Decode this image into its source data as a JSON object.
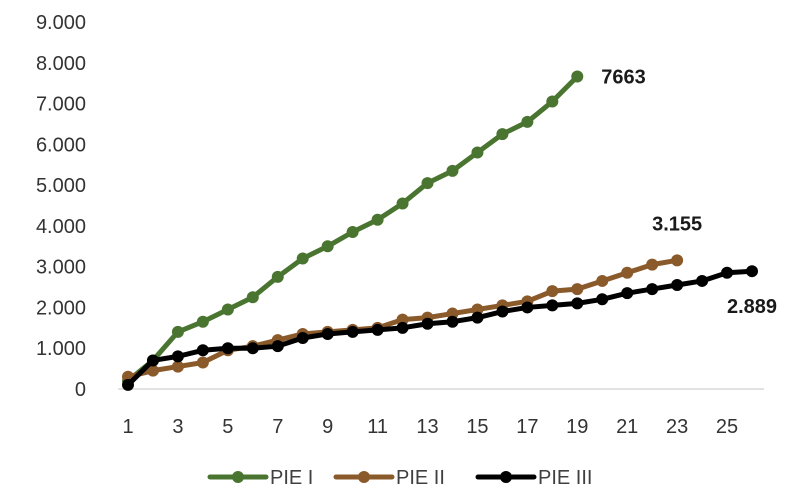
{
  "chart_data": {
    "type": "line",
    "title": "",
    "xlabel": "",
    "ylabel": "",
    "ylim": [
      0,
      9000
    ],
    "xlim": [
      1,
      26
    ],
    "y_ticks": [
      {
        "value": 0,
        "label": "0"
      },
      {
        "value": 1000,
        "label": "1.000"
      },
      {
        "value": 2000,
        "label": "2.000"
      },
      {
        "value": 3000,
        "label": "3.000"
      },
      {
        "value": 4000,
        "label": "4.000"
      },
      {
        "value": 5000,
        "label": "5.000"
      },
      {
        "value": 6000,
        "label": "6.000"
      },
      {
        "value": 7000,
        "label": "7.000"
      },
      {
        "value": 8000,
        "label": "8.000"
      },
      {
        "value": 9000,
        "label": "9.000"
      }
    ],
    "x_ticks": [
      1,
      3,
      5,
      7,
      9,
      11,
      13,
      15,
      17,
      19,
      21,
      23,
      25
    ],
    "grid": false,
    "legend_position": "bottom",
    "series": [
      {
        "name": "PIE I",
        "color": "#4a7530",
        "x": [
          1,
          2,
          3,
          4,
          5,
          6,
          7,
          8,
          9,
          10,
          11,
          12,
          13,
          14,
          15,
          16,
          17,
          18,
          19
        ],
        "values": [
          200,
          700,
          1400,
          1650,
          1950,
          2250,
          2750,
          3200,
          3500,
          3850,
          4150,
          4550,
          5050,
          5350,
          5800,
          6250,
          6550,
          7050,
          7663
        ]
      },
      {
        "name": "PIE II",
        "color": "#8b5a2b",
        "x": [
          1,
          2,
          3,
          4,
          5,
          6,
          7,
          8,
          9,
          10,
          11,
          12,
          13,
          14,
          15,
          16,
          17,
          18,
          19,
          20,
          21,
          22,
          23
        ],
        "values": [
          300,
          450,
          550,
          650,
          950,
          1050,
          1200,
          1350,
          1400,
          1450,
          1500,
          1700,
          1750,
          1850,
          1950,
          2050,
          2150,
          2400,
          2450,
          2650,
          2850,
          3050,
          3155
        ]
      },
      {
        "name": "PIE III",
        "color": "#000000",
        "x": [
          1,
          2,
          3,
          4,
          5,
          6,
          7,
          8,
          9,
          10,
          11,
          12,
          13,
          14,
          15,
          16,
          17,
          18,
          19,
          20,
          21,
          22,
          23,
          24,
          25,
          26
        ],
        "values": [
          100,
          700,
          800,
          950,
          1000,
          1000,
          1050,
          1250,
          1350,
          1400,
          1450,
          1500,
          1600,
          1650,
          1750,
          1900,
          2000,
          2050,
          2100,
          2200,
          2350,
          2450,
          2550,
          2650,
          2850,
          2889
        ]
      }
    ],
    "annotations": [
      {
        "series": 0,
        "text": "7663"
      },
      {
        "series": 1,
        "text": "3.155"
      },
      {
        "series": 2,
        "text": "2.889"
      }
    ]
  }
}
